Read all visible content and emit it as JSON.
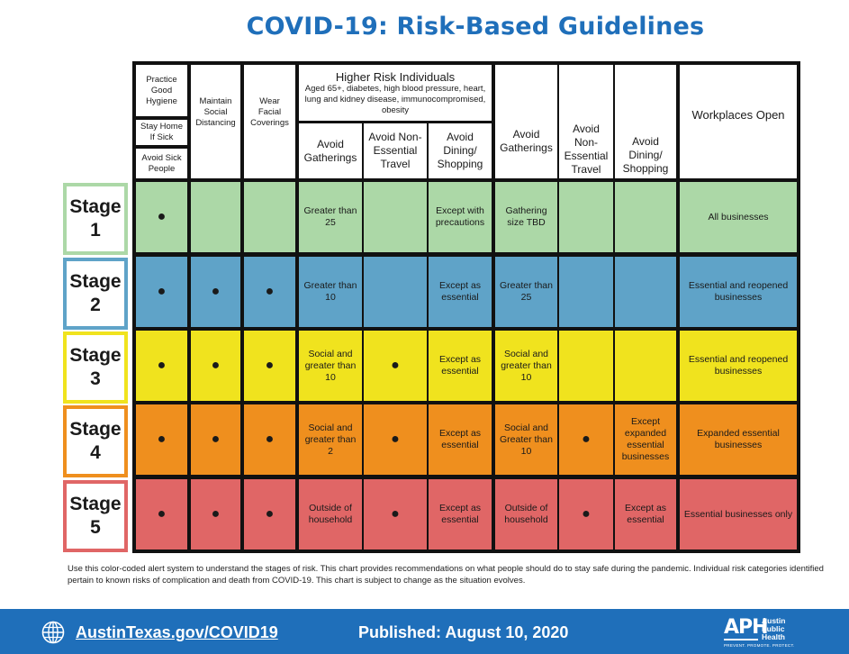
{
  "title": "COVID-19: Risk-Based Guidelines",
  "headers": {
    "practice_good_hygiene": "Practice Good Hygiene",
    "stay_home_if_sick": "Stay Home If Sick",
    "avoid_sick_people": "Avoid Sick People",
    "maintain_social_distancing": "Maintain Social Distancing",
    "wear_facial_coverings": "Wear Facial Coverings",
    "higher_risk_title": "Higher Risk Individuals",
    "higher_risk_subtitle": "Aged 65+, diabetes, high blood pressure, heart, lung and kidney disease, immunocompromised, obesity",
    "hr_avoid_gatherings": "Avoid Gatherings",
    "hr_avoid_travel": "Avoid Non-Essential Travel",
    "hr_avoid_dining": "Avoid Dining/ Shopping",
    "avoid_gatherings": "Avoid Gatherings",
    "avoid_travel": "Avoid Non-Essential Travel",
    "avoid_dining": "Avoid Dining/ Shopping",
    "workplaces_open": "Workplaces Open"
  },
  "stages": [
    {
      "word": "Stage",
      "number": "1",
      "border_color": "#acd8a7",
      "hygiene": "●",
      "distancing": "",
      "coverings": "",
      "hr_gatherings": "Greater than 25",
      "hr_travel": "",
      "hr_dining": "Except with precautions",
      "gatherings": "Gathering size TBD",
      "travel": "",
      "dining": "",
      "workplaces": "All businesses"
    },
    {
      "word": "Stage",
      "number": "2",
      "border_color": "#5fa3c8",
      "hygiene": "●",
      "distancing": "●",
      "coverings": "●",
      "hr_gatherings": "Greater than 10",
      "hr_travel": "",
      "hr_dining": "Except as essential",
      "gatherings": "Greater than 25",
      "travel": "",
      "dining": "",
      "workplaces": "Essential and reopened businesses"
    },
    {
      "word": "Stage",
      "number": "3",
      "border_color": "#f0e31e",
      "hygiene": "●",
      "distancing": "●",
      "coverings": "●",
      "hr_gatherings": "Social and greater than 10",
      "hr_travel": "●",
      "hr_dining": "Except as essential",
      "gatherings": "Social and greater than 10",
      "travel": "",
      "dining": "",
      "workplaces": "Essential and reopened businesses"
    },
    {
      "word": "Stage",
      "number": "4",
      "border_color": "#ef8f1e",
      "hygiene": "●",
      "distancing": "●",
      "coverings": "●",
      "hr_gatherings": "Social and greater than 2",
      "hr_travel": "●",
      "hr_dining": "Except as essential",
      "gatherings": "Social and Greater than 10",
      "travel": "●",
      "dining": "Except expanded essential businesses",
      "workplaces": "Expanded essential businesses"
    },
    {
      "word": "Stage",
      "number": "5",
      "border_color": "#e06666",
      "hygiene": "●",
      "distancing": "●",
      "coverings": "●",
      "hr_gatherings": "Outside of household",
      "hr_travel": "●",
      "hr_dining": "Except as essential",
      "gatherings": "Outside of household",
      "travel": "●",
      "dining": "Except as essential",
      "workplaces": "Essential businesses only"
    }
  ],
  "footnote": "Use this color-coded alert system to understand the stages of risk. This chart provides recommendations on what people should do to stay safe during the pandemic. Individual risk categories identified pertain to known risks of complication and death from COVID-19. This chart is subject to change as the situation evolves.",
  "footer": {
    "url": "AustinTexas.gov/COVID19",
    "published": "Published: August 10, 2020",
    "logo_mark": "APH",
    "logo_line1": "Austin",
    "logo_line2": "Public",
    "logo_line3": "Health",
    "logo_tagline": "PREVENT. PROMOTE. PROTECT.",
    "globe_icon": "globe-icon"
  }
}
